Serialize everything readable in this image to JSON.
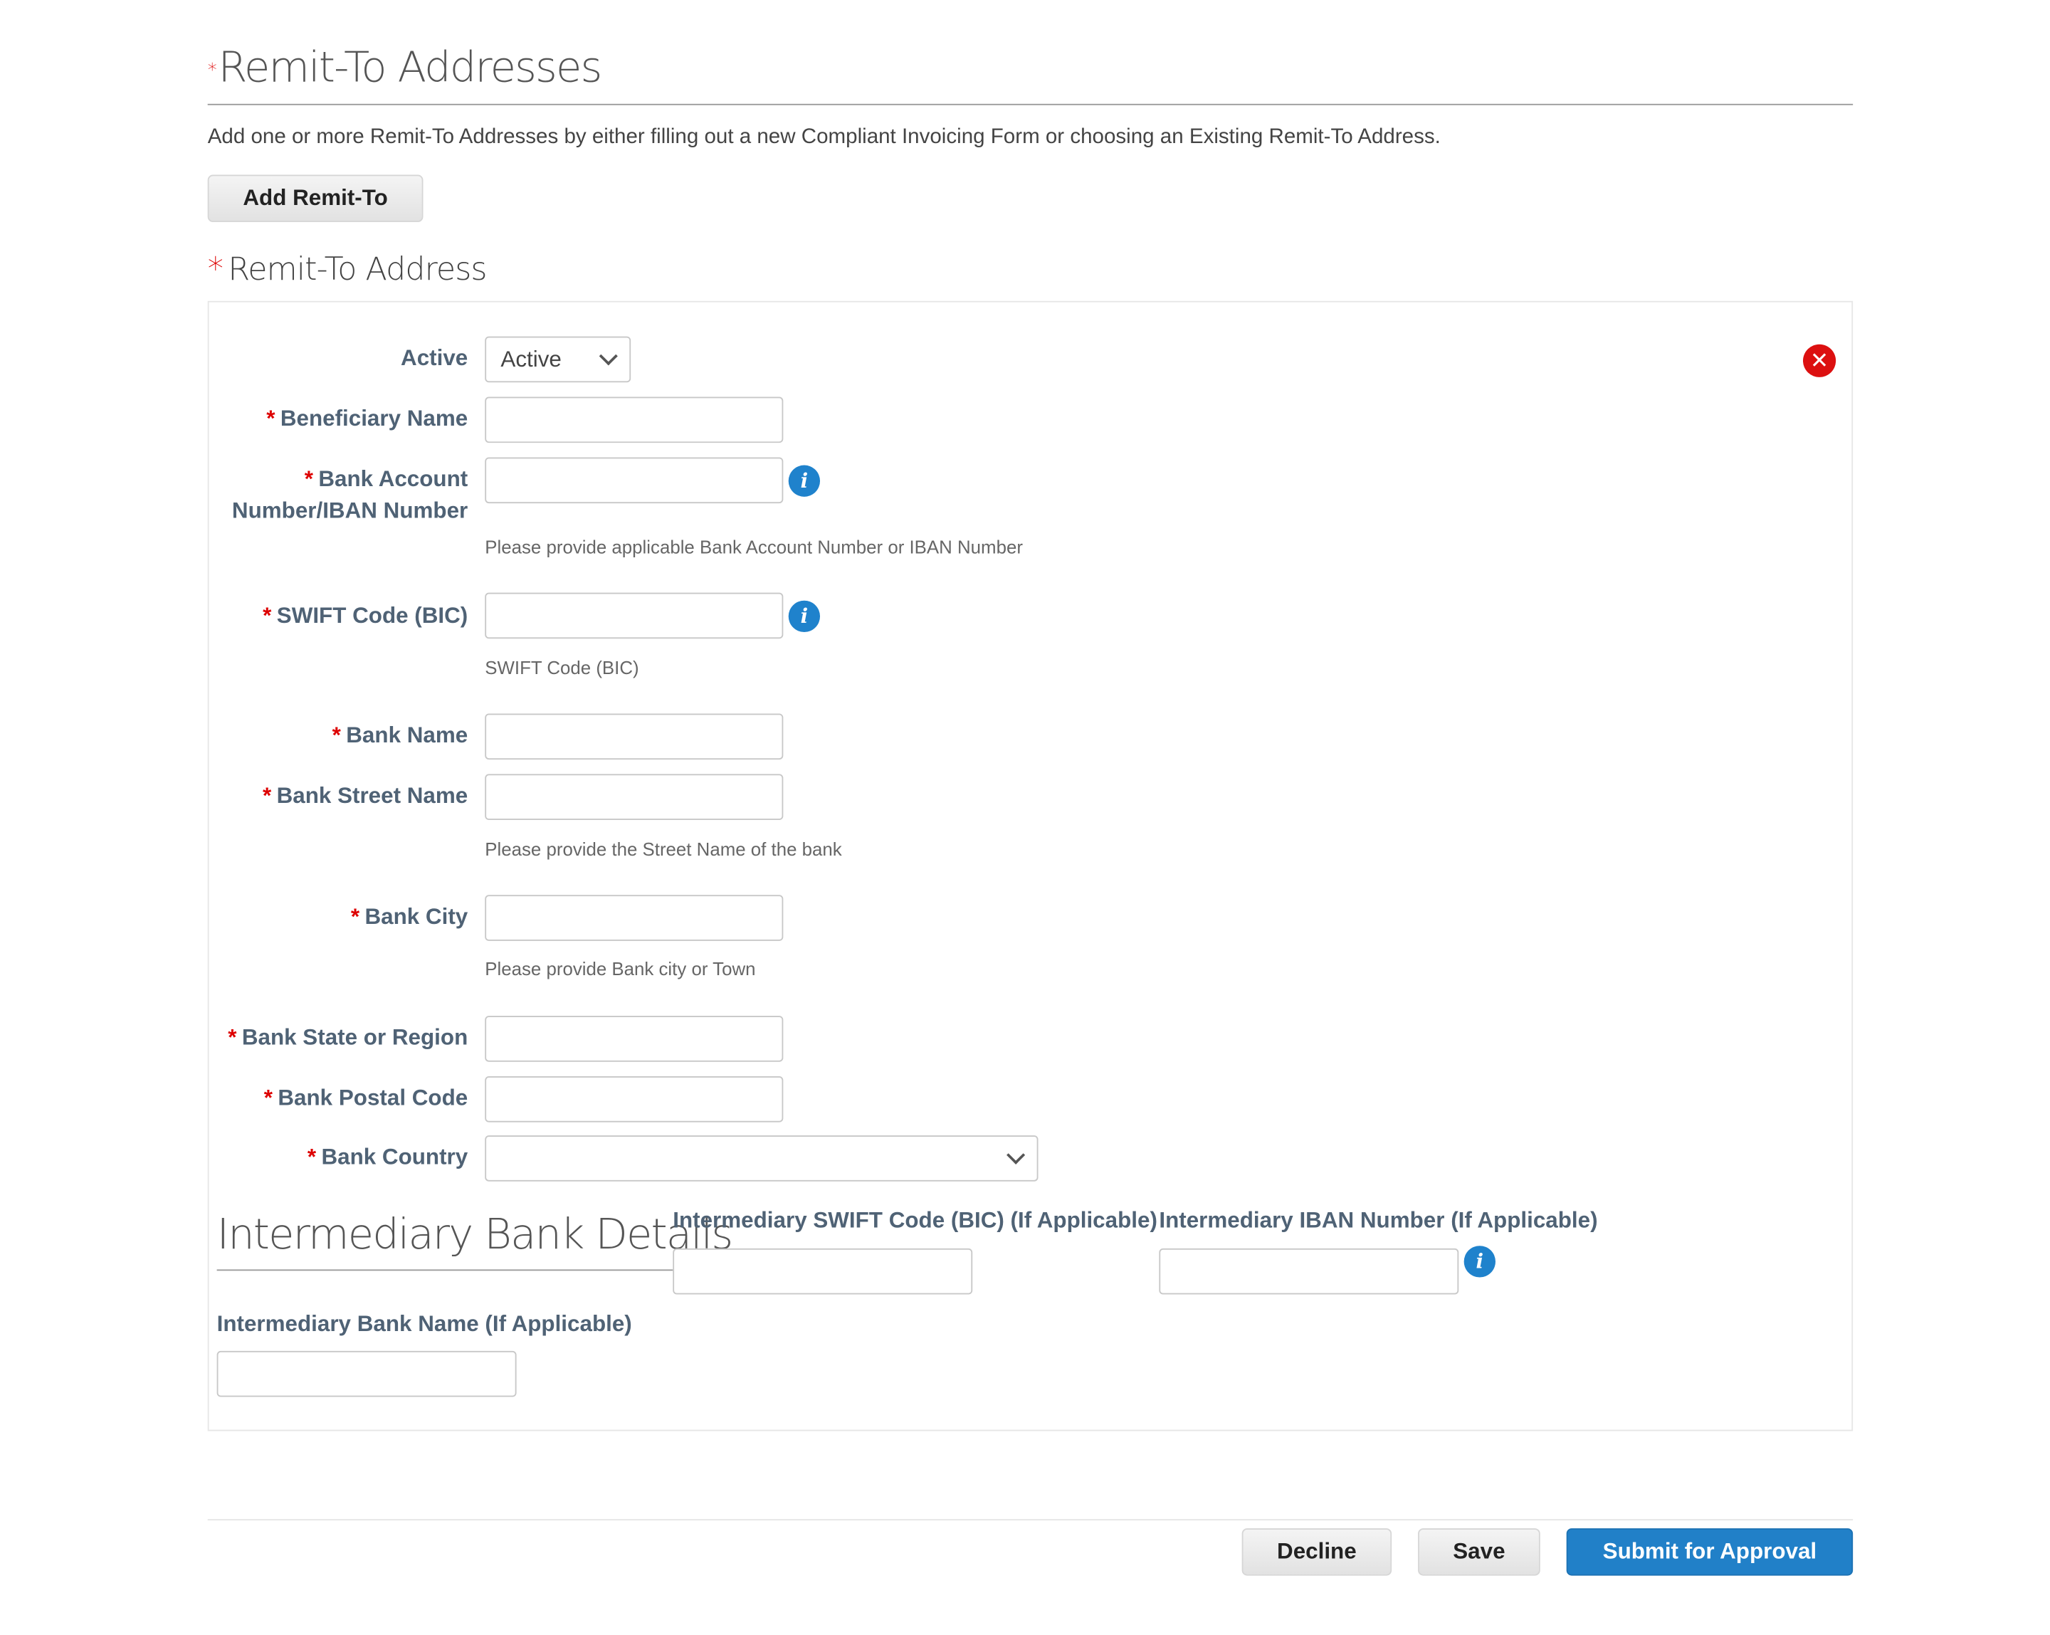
{
  "header": {
    "title": "Remit-To Addresses",
    "required_marker": "*",
    "description": "Add one or more Remit-To Addresses by either filling out a new Compliant Invoicing Form or choosing an Existing Remit-To Address.",
    "add_button": "Add Remit-To"
  },
  "section": {
    "title": "Remit-To Address",
    "required_marker": "*"
  },
  "form": {
    "active": {
      "label": "Active",
      "value": "Active"
    },
    "beneficiary_name": {
      "label": "Beneficiary Name",
      "value": ""
    },
    "bank_account": {
      "label_line1": "Bank Account",
      "label_line2": "Number/IBAN Number",
      "value": "",
      "hint": "Please provide applicable Bank Account Number or IBAN Number"
    },
    "swift": {
      "label": "SWIFT Code (BIC)",
      "value": "",
      "hint": "SWIFT Code (BIC)"
    },
    "bank_name": {
      "label": "Bank Name",
      "value": ""
    },
    "bank_street": {
      "label": "Bank Street Name",
      "value": "",
      "hint": "Please provide the Street Name of the bank"
    },
    "bank_city": {
      "label": "Bank City",
      "value": "",
      "hint": "Please provide Bank city or Town"
    },
    "bank_state": {
      "label": "Bank State or Region",
      "value": ""
    },
    "bank_postal": {
      "label": "Bank Postal Code",
      "value": ""
    },
    "bank_country": {
      "label": "Bank Country",
      "value": ""
    }
  },
  "intermediary": {
    "title": "Intermediary Bank Details",
    "swift_label": "Intermediary SWIFT Code (BIC) (If Applicable)",
    "iban_label": "Intermediary IBAN Number (If Applicable)",
    "name_label": "Intermediary Bank Name (If Applicable)"
  },
  "footer": {
    "decline": "Decline",
    "save": "Save",
    "submit": "Submit for Approval"
  },
  "colors": {
    "accent": "#1f7dc4",
    "required": "#dd0000",
    "label": "#4f6275",
    "remove": "#dc1010"
  },
  "icons": {
    "info": "info-icon",
    "remove": "close-circle-icon",
    "dropdown": "chevron-down-icon"
  }
}
